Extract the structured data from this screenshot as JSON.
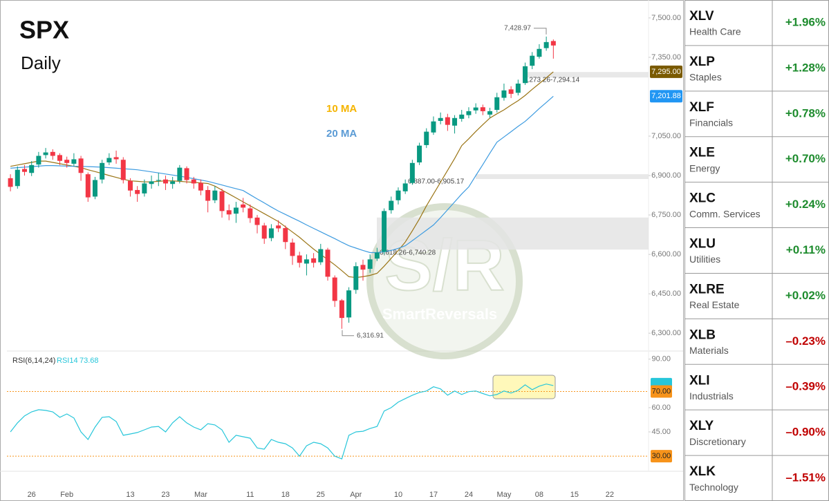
{
  "chart_data": [
    {
      "type": "candlestick",
      "title": "SPX",
      "subtitle": "Daily",
      "categories": [
        null,
        null,
        null,
        "26",
        null,
        null,
        null,
        null,
        "Feb",
        null,
        null,
        null,
        null,
        null,
        null,
        null,
        null,
        "13",
        null,
        null,
        null,
        null,
        "23",
        null,
        null,
        null,
        null,
        "Mar",
        null,
        null,
        null,
        null,
        null,
        null,
        "11",
        null,
        null,
        null,
        null,
        "18",
        null,
        null,
        null,
        null,
        "25",
        null,
        null,
        null,
        null,
        "Apr",
        null,
        null,
        null,
        null,
        null,
        "10",
        null,
        null,
        null,
        null,
        "17",
        null,
        null,
        null,
        null,
        "24",
        null,
        null,
        null,
        null,
        "May",
        null,
        null,
        null,
        null,
        "08",
        null,
        null,
        null,
        null,
        "15",
        null,
        null,
        null,
        null,
        "22",
        null,
        null,
        null,
        null,
        null
      ],
      "open": [
        6890,
        6860,
        6925,
        6910,
        6942,
        6978,
        6990,
        6978,
        6960,
        6945,
        6965,
        6905,
        6820,
        6885,
        6950,
        6970,
        6960,
        6880,
        6845,
        6832,
        6868,
        6880,
        6885,
        6868,
        6880,
        6928,
        6885,
        6872,
        6845,
        6806,
        6840,
        6768,
        6755,
        6790,
        6775,
        6740,
        6710,
        6662,
        6710,
        6700,
        6645,
        6596,
        6565,
        6585,
        6570,
        6618,
        6512,
        6425,
        6360,
        6465,
        6560,
        6545,
        6584,
        6610,
        6768,
        6806,
        6840,
        6872,
        6950,
        7016,
        7064,
        7108,
        7122,
        7090,
        7116,
        7130,
        7148,
        7160,
        7132,
        7150,
        7196,
        7228,
        7215,
        7252,
        7318,
        7352,
        7385,
        7412,
        null,
        null,
        null,
        null,
        null,
        null,
        null,
        null,
        null,
        null,
        null,
        null,
        null
      ],
      "high": [
        6905,
        6935,
        6940,
        6955,
        6990,
        7005,
        7000,
        6985,
        6972,
        6985,
        6975,
        6912,
        6895,
        6960,
        6985,
        6995,
        6970,
        6890,
        6860,
        6885,
        6900,
        6910,
        6900,
        6895,
        6940,
        6935,
        6895,
        6885,
        6860,
        6860,
        6850,
        6790,
        6800,
        6815,
        6790,
        6750,
        6720,
        6715,
        6730,
        6710,
        6660,
        6610,
        6600,
        6605,
        6640,
        6625,
        6520,
        6430,
        6475,
        6570,
        6580,
        6600,
        6625,
        6775,
        6820,
        6855,
        6885,
        6960,
        7025,
        7080,
        7125,
        7140,
        7135,
        7130,
        7150,
        7160,
        7175,
        7170,
        7158,
        7215,
        7250,
        7240,
        7265,
        7330,
        7370,
        7400,
        7428.97,
        7418,
        null,
        null,
        null,
        null,
        null,
        null,
        null,
        null,
        null,
        null,
        null,
        null,
        null
      ],
      "low": [
        6840,
        6850,
        6900,
        6898,
        6930,
        6965,
        6960,
        6940,
        6930,
        6935,
        6880,
        6800,
        6810,
        6870,
        6940,
        6945,
        6870,
        6820,
        6800,
        6820,
        6850,
        6860,
        6845,
        6850,
        6870,
        6870,
        6850,
        6825,
        6760,
        6795,
        6740,
        6730,
        6720,
        6760,
        6720,
        6680,
        6640,
        6650,
        6685,
        6620,
        6560,
        6550,
        6520,
        6550,
        6560,
        6500,
        6400,
        6316.91,
        6340,
        6450,
        6500,
        6530,
        6575,
        6600,
        6755,
        6790,
        6830,
        6865,
        6940,
        7005,
        7055,
        7095,
        7070,
        7060,
        7105,
        7118,
        7135,
        7130,
        7120,
        7140,
        7185,
        7195,
        7205,
        7245,
        7305,
        7345,
        7375,
        7345,
        null,
        null,
        null,
        null,
        null,
        null,
        null,
        null,
        null,
        null,
        null,
        null,
        null
      ],
      "close": [
        6857,
        6922,
        6914,
        6940,
        6975,
        6988,
        6975,
        6956,
        6948,
        6962,
        6910,
        6817,
        6883,
        6948,
        6967,
        6962,
        6883,
        6843,
        6830,
        6870,
        6878,
        6883,
        6870,
        6878,
        6930,
        6883,
        6870,
        6843,
        6804,
        6843,
        6765,
        6752,
        6778,
        6778,
        6738,
        6712,
        6660,
        6699,
        6699,
        6647,
        6594,
        6568,
        6581,
        6568,
        6620,
        6515,
        6423,
        6358,
        6463,
        6555,
        6542,
        6581,
        6607,
        6765,
        6804,
        6843,
        6870,
        6948,
        7014,
        7067,
        7106,
        7119,
        7093,
        7119,
        7132,
        7145,
        7159,
        7145,
        7145,
        7198,
        7224,
        7211,
        7250,
        7316,
        7356,
        7382,
        7408,
        7395,
        null,
        null,
        null,
        null,
        null,
        null,
        null,
        null,
        null,
        null,
        null,
        null,
        null
      ],
      "up_color": "#089981",
      "down_color": "#f23645",
      "series": [
        {
          "name": "10 MA",
          "color": "#9a7414",
          "label_color": "#f5b400",
          "values": [
            6935,
            6940,
            6945,
            6950,
            6955,
            6955,
            6950,
            6945,
            6940,
            6935,
            6930,
            6922,
            6915,
            6908,
            6900,
            6893,
            6886,
            6880,
            6878,
            6876,
            6876,
            6878,
            6880,
            6880,
            6878,
            6876,
            6874,
            6872,
            6870,
            6860,
            6845,
            6830,
            6815,
            6800,
            6785,
            6770,
            6755,
            6740,
            6725,
            6705,
            6685,
            6665,
            6642,
            6620,
            6600,
            6580,
            6560,
            6538,
            6515,
            6512,
            6515,
            6520,
            6528,
            6555,
            6585,
            6615,
            6647,
            6690,
            6735,
            6785,
            6830,
            6875,
            6920,
            6965,
            7014,
            7040,
            7068,
            7094,
            7119,
            7135,
            7150,
            7168,
            7185,
            7205,
            7228,
            7250,
            7272,
            7295,
            null,
            null,
            null,
            null,
            null,
            null,
            null,
            null,
            null,
            null,
            null,
            null,
            null
          ]
        },
        {
          "name": "20 MA",
          "color": "#3d9be0",
          "label_color": "#5b9bd5",
          "values": [
            6928,
            6930,
            6932,
            6934,
            6936,
            6938,
            6938,
            6937,
            6936,
            6935,
            6935,
            6934,
            6933,
            6932,
            6930,
            6928,
            6926,
            6924,
            6922,
            6918,
            6914,
            6910,
            6906,
            6902,
            6898,
            6893,
            6888,
            6883,
            6878,
            6871,
            6864,
            6857,
            6850,
            6843,
            6827,
            6811,
            6796,
            6780,
            6765,
            6752,
            6739,
            6726,
            6712,
            6699,
            6686,
            6673,
            6660,
            6646,
            6633,
            6624,
            6615,
            6607,
            6607,
            6610,
            6615,
            6623,
            6633,
            6652,
            6672,
            6692,
            6712,
            6740,
            6770,
            6800,
            6830,
            6857,
            6900,
            6942,
            6985,
            7027,
            7047,
            7067,
            7087,
            7106,
            7130,
            7155,
            7178,
            7201.88,
            null,
            null,
            null,
            null,
            null,
            null,
            null,
            null,
            null,
            null,
            null,
            null,
            null
          ]
        }
      ],
      "ylim": [
        6240,
        7555
      ],
      "yticks": [
        {
          "value": 7500,
          "label": "7,500.00"
        },
        {
          "value": 7350,
          "label": "7,350.00"
        },
        {
          "value": 7050,
          "label": "7,050.00"
        },
        {
          "value": 6900,
          "label": "6,900.00"
        },
        {
          "value": 6750,
          "label": "6,750.00"
        },
        {
          "value": 6600,
          "label": "6,600.00"
        },
        {
          "value": 6450,
          "label": "6,450.00"
        },
        {
          "value": 6300,
          "label": "6,300.00"
        }
      ],
      "grid": false,
      "markers": [
        {
          "value": 7295,
          "label": "7,295.00",
          "color": "#7a5a00"
        },
        {
          "value": 7201.88,
          "label": "7,201.88",
          "color": "#2196f3"
        }
      ],
      "zones": [
        {
          "low": 7273.26,
          "high": 7294.14,
          "label": "7,273.26-7,294.14"
        },
        {
          "low": 6887,
          "high": 6905.17,
          "label": "6,887.00-6,905.17"
        },
        {
          "low": 6618.26,
          "high": 6740.28,
          "label": "6,618.26-6,740.28"
        }
      ],
      "annotations": [
        {
          "value": 7428.97,
          "label": "7,428.97"
        },
        {
          "value": 6316.91,
          "label": "6,316.91"
        }
      ]
    },
    {
      "type": "line",
      "title": "RSI(6,14,24)",
      "series": [
        {
          "name": "RSI14",
          "color": "#26c6da",
          "values": [
            45,
            50.6,
            54.9,
            57.4,
            58.7,
            58.3,
            57.4,
            54,
            56.1,
            53.6,
            45,
            40.3,
            48,
            54,
            54.4,
            51.4,
            42.9,
            43.7,
            44.6,
            46.3,
            48,
            48.4,
            45,
            50.6,
            54.4,
            50.6,
            48,
            46.3,
            50.1,
            49.3,
            46.3,
            38.6,
            42.9,
            42,
            41.1,
            35.1,
            34.3,
            40.3,
            38.6,
            37.7,
            35.1,
            30,
            36.4,
            38.6,
            37.7,
            35.1,
            30,
            28.3,
            42.9,
            45,
            45.4,
            47.1,
            48.4,
            57.9,
            60,
            63.4,
            65.6,
            67.7,
            69.4,
            70.3,
            72.9,
            71.6,
            67.7,
            70.3,
            68.1,
            69.9,
            70.3,
            68.7,
            67.3,
            68.1,
            70.3,
            69,
            70.7,
            74.1,
            71.1,
            73.3,
            74.6,
            73.68,
            null,
            null,
            null,
            null,
            null,
            null,
            null,
            null,
            null,
            null,
            null,
            null,
            null
          ]
        }
      ],
      "ylim": [
        21.5,
        95
      ],
      "yticks": [
        {
          "value": 90,
          "label": "90.00"
        },
        {
          "value": 60,
          "label": "60.00"
        },
        {
          "value": 45,
          "label": "45.00"
        }
      ],
      "levels": [
        {
          "value": 70,
          "label": "70.00"
        },
        {
          "value": 30,
          "label": "30.00"
        }
      ],
      "level_color": "#f7931a"
    }
  ],
  "watermark": {
    "mark": "S/R",
    "name": "SmartReversals"
  },
  "sectors": [
    {
      "ticker": "XLV",
      "name": "Health Care",
      "change": "+1.96%"
    },
    {
      "ticker": "XLP",
      "name": "Staples",
      "change": "+1.28%"
    },
    {
      "ticker": "XLF",
      "name": "Financials",
      "change": "+0.78%"
    },
    {
      "ticker": "XLE",
      "name": "Energy",
      "change": "+0.70%"
    },
    {
      "ticker": "XLC",
      "name": "Comm. Services",
      "change": "+0.24%"
    },
    {
      "ticker": "XLU",
      "name": "Utilities",
      "change": "+0.11%"
    },
    {
      "ticker": "XLRE",
      "name": "Real Estate",
      "change": "+0.02%"
    },
    {
      "ticker": "XLB",
      "name": "Materials",
      "change": "–0.23%"
    },
    {
      "ticker": "XLI",
      "name": "Industrials",
      "change": "–0.39%"
    },
    {
      "ticker": "XLY",
      "name": "Discretionary",
      "change": "–0.90%"
    },
    {
      "ticker": "XLK",
      "name": "Technology",
      "change": "–1.51%"
    }
  ]
}
